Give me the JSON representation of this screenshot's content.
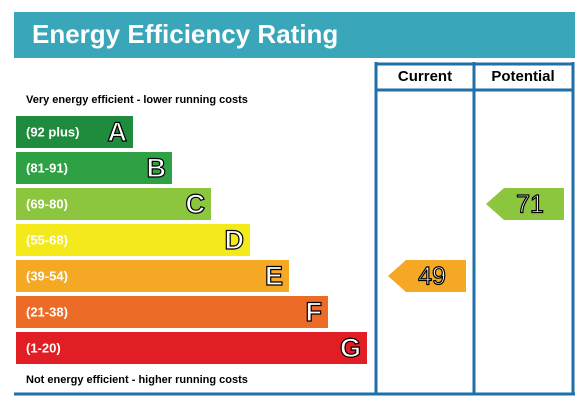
{
  "header": {
    "title": "Energy Efficiency Rating"
  },
  "columns": [
    "Current",
    "Potential"
  ],
  "top_note": "Very energy efficient - lower running costs",
  "bottom_note": "Not energy efficient - higher running costs",
  "bands": [
    {
      "range": "(92 plus)",
      "letter": "A",
      "color": "#1e8c3c"
    },
    {
      "range": "(81-91)",
      "letter": "B",
      "color": "#2da143"
    },
    {
      "range": "(69-80)",
      "letter": "C",
      "color": "#8cc63f"
    },
    {
      "range": "(55-68)",
      "letter": "D",
      "color": "#f4e91a"
    },
    {
      "range": "(39-54)",
      "letter": "E",
      "color": "#f4a823"
    },
    {
      "range": "(21-38)",
      "letter": "F",
      "color": "#ec6b27"
    },
    {
      "range": "(1-20)",
      "letter": "G",
      "color": "#e21e25"
    }
  ],
  "ratings": {
    "current": "49",
    "potential": "71"
  }
}
